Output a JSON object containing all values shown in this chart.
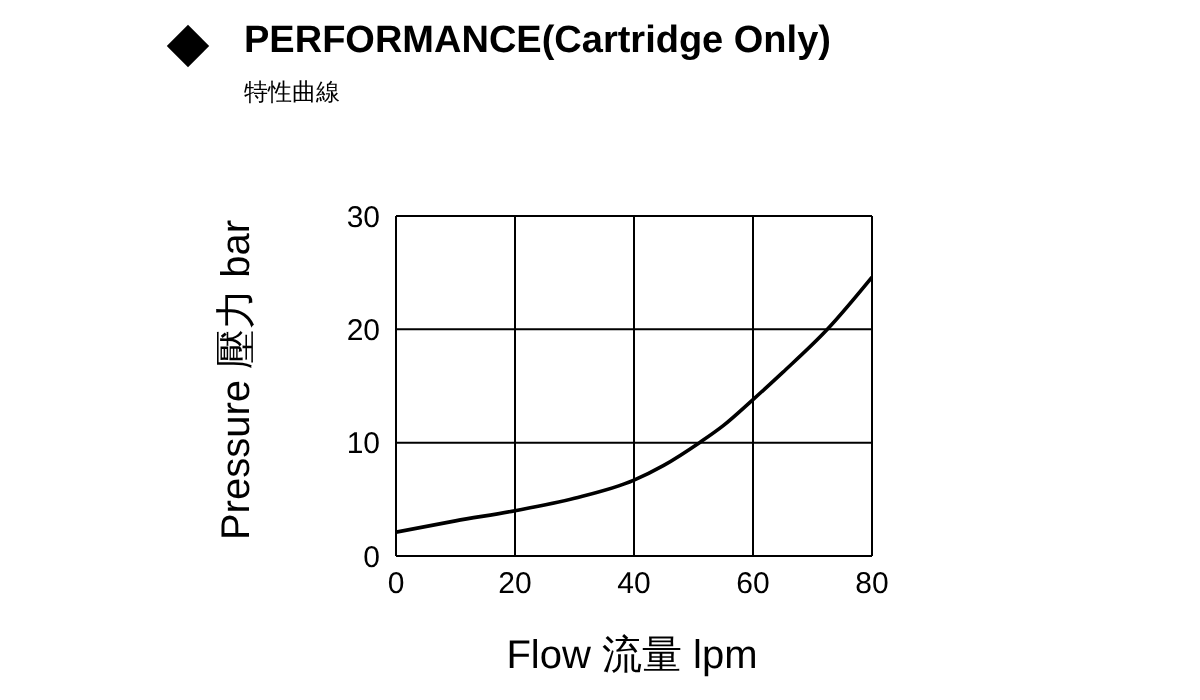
{
  "chart_data": {
    "type": "line",
    "title": "PERFORMANCE(Cartridge Only)",
    "subtitle": "特性曲線",
    "xlabel": "Flow 流量 lpm",
    "ylabel": "Pressure 壓力 bar",
    "x": [
      0,
      10,
      20,
      30,
      40,
      45,
      51,
      55,
      60,
      65,
      72.5,
      80
    ],
    "series": [
      {
        "color": "#000000",
        "values": [
          2.1,
          3.1,
          4.0,
          5.1,
          6.7,
          8.0,
          10,
          11.5,
          13.8,
          16.2,
          20,
          24.6
        ]
      }
    ],
    "xlim": [
      0,
      80
    ],
    "xticks": [
      0,
      20,
      40,
      60,
      80
    ],
    "ylim": [
      0,
      30
    ],
    "yticks": [
      0,
      10,
      20,
      30
    ],
    "grid": true,
    "marker": "none",
    "legend": false
  }
}
